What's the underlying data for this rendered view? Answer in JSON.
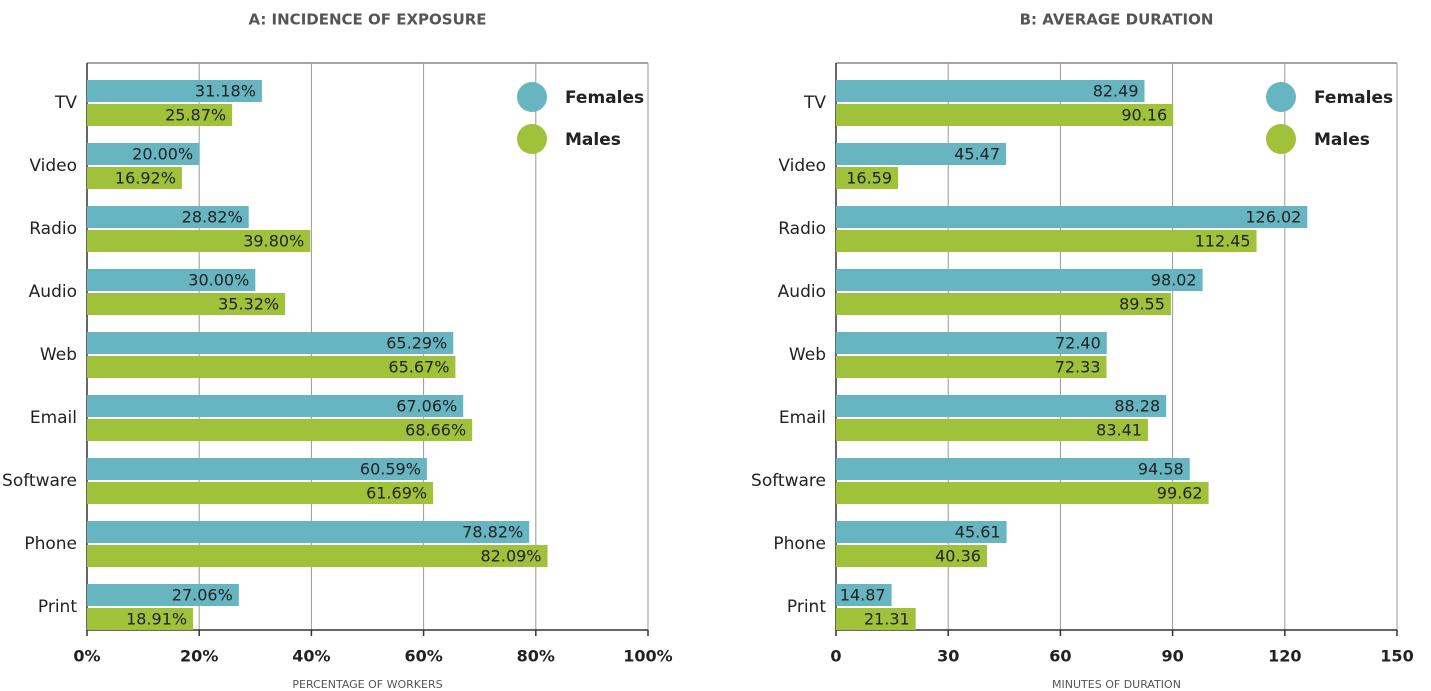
{
  "chart_data": [
    {
      "type": "bar",
      "orientation": "horizontal",
      "title": "A: INCIDENCE OF EXPOSURE",
      "x_label": "PERCENTAGE OF WORKERS",
      "categories": [
        "TV",
        "Video",
        "Radio",
        "Audio",
        "Web",
        "Email",
        "Software",
        "Phone",
        "Print"
      ],
      "series": [
        {
          "name": "Females",
          "color": "#67b5c0",
          "values": [
            31.18,
            20.0,
            28.82,
            30.0,
            65.29,
            67.06,
            60.59,
            78.82,
            27.06
          ],
          "value_labels": [
            "31.18%",
            "20.00%",
            "28.82%",
            "30.00%",
            "65.29%",
            "67.06%",
            "60.59%",
            "78.82%",
            "27.06%"
          ]
        },
        {
          "name": "Males",
          "color": "#a0c13a",
          "values": [
            25.87,
            16.92,
            39.8,
            35.32,
            65.67,
            68.66,
            61.69,
            82.09,
            18.91
          ],
          "value_labels": [
            "25.87%",
            "16.92%",
            "39.80%",
            "35.32%",
            "65.67%",
            "68.66%",
            "61.69%",
            "82.09%",
            "18.91%"
          ]
        }
      ],
      "xlim": [
        0,
        100
      ],
      "xticks": [
        {
          "value": 0,
          "label": "0%"
        },
        {
          "value": 20,
          "label": "20%"
        },
        {
          "value": 40,
          "label": "40%"
        },
        {
          "value": 60,
          "label": "60%"
        },
        {
          "value": 80,
          "label": "80%"
        },
        {
          "value": 100,
          "label": "100%"
        }
      ],
      "grid": true,
      "legend": "upper right"
    },
    {
      "type": "bar",
      "orientation": "horizontal",
      "title": "B: AVERAGE DURATION",
      "x_label": "MINUTES OF DURATION",
      "categories": [
        "TV",
        "Video",
        "Radio",
        "Audio",
        "Web",
        "Email",
        "Software",
        "Phone",
        "Print"
      ],
      "series": [
        {
          "name": "Females",
          "color": "#67b5c0",
          "values": [
            82.49,
            45.47,
            126.02,
            98.02,
            72.4,
            88.28,
            94.58,
            45.61,
            14.87
          ],
          "value_labels": [
            "82.49",
            "45.47",
            "126.02",
            "98.02",
            "72.40",
            "88.28",
            "94.58",
            "45.61",
            "14.87"
          ]
        },
        {
          "name": "Males",
          "color": "#a0c13a",
          "values": [
            90.16,
            16.59,
            112.45,
            89.55,
            72.33,
            83.41,
            99.62,
            40.36,
            21.31
          ],
          "value_labels": [
            "90.16",
            "16.59",
            "112.45",
            "89.55",
            "72.33",
            "83.41",
            "99.62",
            "40.36",
            "21.31"
          ]
        }
      ],
      "xlim": [
        0,
        150
      ],
      "xticks": [
        0,
        30,
        60,
        90,
        120,
        150
      ],
      "grid": true,
      "legend": "upper right"
    }
  ]
}
